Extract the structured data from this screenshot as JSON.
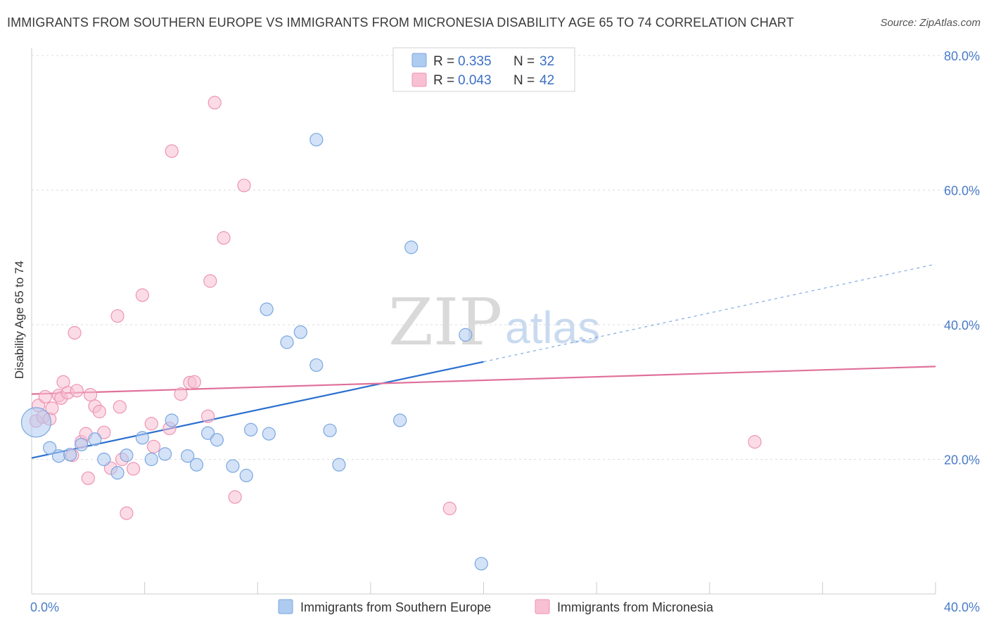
{
  "title": "IMMIGRANTS FROM SOUTHERN EUROPE VS IMMIGRANTS FROM MICRONESIA DISABILITY AGE 65 TO 74 CORRELATION CHART",
  "source": "Source: ZipAtlas.com",
  "watermark": {
    "zip": "ZIP",
    "atlas": "atlas"
  },
  "colors": {
    "blue_fill": "#aecbf0",
    "blue_stroke": "#7aa7e0",
    "blue_line": "#2a6fd0",
    "pink_fill": "#f8c0d2",
    "pink_stroke": "#ee94b3",
    "pink_line": "#e0709a",
    "grid": "#dddddd",
    "axis": "#cccccc",
    "tick_text": "#4a7cc9"
  },
  "stats": [
    {
      "r_label": "R =",
      "r_value": "0.335",
      "n_label": "N =",
      "n_value": "32"
    },
    {
      "r_label": "R =",
      "r_value": "0.043",
      "n_label": "N =",
      "n_value": "42"
    }
  ],
  "legend": [
    "Immigrants from Southern Europe",
    "Immigrants from Micronesia"
  ],
  "chart_data": {
    "type": "scatter",
    "ylabel": "Disability Age 65 to 74",
    "xlim": [
      0,
      40
    ],
    "ylim": [
      0,
      80
    ],
    "x_tick_labels": [
      {
        "value": 0,
        "label": "0.0%"
      },
      {
        "value": 40,
        "label": "40.0%"
      }
    ],
    "y_tick_labels": [
      {
        "value": 20,
        "label": "20.0%"
      },
      {
        "value": 40,
        "label": "40.0%"
      },
      {
        "value": 60,
        "label": "60.0%"
      },
      {
        "value": 80,
        "label": "80.0%"
      }
    ],
    "legend_position": "bottom",
    "grid": true,
    "series": [
      {
        "name": "Immigrants from Southern Europe",
        "color": "#aecbf0",
        "trend": {
          "x0": 0,
          "y0": 20.2,
          "x1": 20,
          "y1": 34.5,
          "x_dash_end": 40,
          "y_dash_end": 49.0
        },
        "points": [
          {
            "x": 0.2,
            "y": 25.5,
            "big": true
          },
          {
            "x": 0.8,
            "y": 21.7
          },
          {
            "x": 1.2,
            "y": 20.5
          },
          {
            "x": 1.7,
            "y": 20.7
          },
          {
            "x": 2.2,
            "y": 22.2
          },
          {
            "x": 2.8,
            "y": 23.0
          },
          {
            "x": 3.2,
            "y": 20.0
          },
          {
            "x": 3.8,
            "y": 18.0
          },
          {
            "x": 4.2,
            "y": 20.6
          },
          {
            "x": 4.9,
            "y": 23.2
          },
          {
            "x": 5.3,
            "y": 20.0
          },
          {
            "x": 5.9,
            "y": 20.8
          },
          {
            "x": 6.2,
            "y": 25.8
          },
          {
            "x": 6.9,
            "y": 20.5
          },
          {
            "x": 7.3,
            "y": 19.2
          },
          {
            "x": 7.8,
            "y": 23.9
          },
          {
            "x": 8.2,
            "y": 22.9
          },
          {
            "x": 8.9,
            "y": 19.0
          },
          {
            "x": 9.5,
            "y": 17.6
          },
          {
            "x": 9.7,
            "y": 24.4
          },
          {
            "x": 10.5,
            "y": 23.8
          },
          {
            "x": 10.4,
            "y": 42.3
          },
          {
            "x": 11.3,
            "y": 37.4
          },
          {
            "x": 11.9,
            "y": 38.9
          },
          {
            "x": 12.6,
            "y": 67.5
          },
          {
            "x": 12.6,
            "y": 34.0
          },
          {
            "x": 13.2,
            "y": 24.3
          },
          {
            "x": 13.6,
            "y": 19.2
          },
          {
            "x": 16.3,
            "y": 25.8
          },
          {
            "x": 16.8,
            "y": 51.5
          },
          {
            "x": 19.2,
            "y": 38.5
          },
          {
            "x": 19.9,
            "y": 4.5
          }
        ]
      },
      {
        "name": "Immigrants from Micronesia",
        "color": "#f8c0d2",
        "trend": {
          "x0": 0,
          "y0": 29.7,
          "x1": 40,
          "y1": 33.8
        },
        "points": [
          {
            "x": 0.2,
            "y": 25.7
          },
          {
            "x": 0.3,
            "y": 28.0
          },
          {
            "x": 0.5,
            "y": 26.3
          },
          {
            "x": 0.6,
            "y": 29.3
          },
          {
            "x": 0.8,
            "y": 26.0
          },
          {
            "x": 0.9,
            "y": 27.6
          },
          {
            "x": 1.2,
            "y": 29.5
          },
          {
            "x": 1.3,
            "y": 29.1
          },
          {
            "x": 1.4,
            "y": 31.5
          },
          {
            "x": 1.6,
            "y": 29.9
          },
          {
            "x": 1.8,
            "y": 20.6
          },
          {
            "x": 1.9,
            "y": 38.8
          },
          {
            "x": 2.0,
            "y": 30.2
          },
          {
            "x": 2.2,
            "y": 22.6
          },
          {
            "x": 2.4,
            "y": 23.8
          },
          {
            "x": 2.5,
            "y": 17.2
          },
          {
            "x": 2.6,
            "y": 29.6
          },
          {
            "x": 2.8,
            "y": 27.9
          },
          {
            "x": 3.0,
            "y": 27.1
          },
          {
            "x": 3.2,
            "y": 24.0
          },
          {
            "x": 3.5,
            "y": 18.7
          },
          {
            "x": 3.8,
            "y": 41.3
          },
          {
            "x": 3.9,
            "y": 27.8
          },
          {
            "x": 4.0,
            "y": 20.0
          },
          {
            "x": 4.2,
            "y": 12.0
          },
          {
            "x": 4.5,
            "y": 18.6
          },
          {
            "x": 4.9,
            "y": 44.4
          },
          {
            "x": 5.3,
            "y": 25.3
          },
          {
            "x": 5.4,
            "y": 21.9
          },
          {
            "x": 6.1,
            "y": 24.6
          },
          {
            "x": 6.2,
            "y": 65.8
          },
          {
            "x": 6.6,
            "y": 29.7
          },
          {
            "x": 7.0,
            "y": 31.4
          },
          {
            "x": 7.2,
            "y": 31.5
          },
          {
            "x": 7.8,
            "y": 26.4
          },
          {
            "x": 7.9,
            "y": 46.5
          },
          {
            "x": 8.1,
            "y": 73.0
          },
          {
            "x": 8.5,
            "y": 52.9
          },
          {
            "x": 9.0,
            "y": 14.4
          },
          {
            "x": 9.4,
            "y": 60.7
          },
          {
            "x": 18.5,
            "y": 12.7
          },
          {
            "x": 32.0,
            "y": 22.6
          }
        ]
      }
    ]
  }
}
